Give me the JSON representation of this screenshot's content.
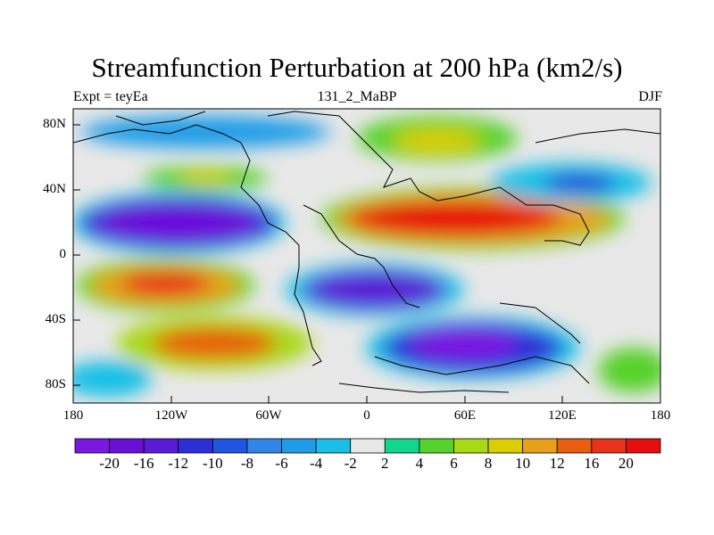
{
  "title": "Streamfunction Perturbation at 200 hPa (km2/s)",
  "subtitle_left": "Expt = teyEa",
  "subtitle_center": "131_2_MaBP",
  "subtitle_right": "DJF",
  "lat_ticks": [
    "80N",
    "40N",
    "0",
    "40S",
    "80S"
  ],
  "lon_ticks": [
    "180",
    "120W",
    "60W",
    "0",
    "60E",
    "120E",
    "180"
  ],
  "colorbar": {
    "colors": [
      "#7a17e0",
      "#6a0fd8",
      "#5a1ad6",
      "#2e2ed8",
      "#1f55e0",
      "#2f86e6",
      "#1f9be8",
      "#19bfe6",
      "#e8e8e8",
      "#10d68e",
      "#56d22b",
      "#a8d915",
      "#dccd00",
      "#e8a01a",
      "#e85d10",
      "#e8331a",
      "#e60f0f"
    ],
    "labels": [
      "-20",
      "-16",
      "-12",
      "-10",
      "-8",
      "-6",
      "-4",
      "-2",
      "2",
      "4",
      "6",
      "8",
      "10",
      "12",
      "16",
      "20"
    ]
  },
  "fields": [
    {
      "name": "west-pacific-low",
      "lon": -115,
      "lat": 17,
      "value": -22
    },
    {
      "name": "south-pacific-high",
      "lon": -105,
      "lat": -17,
      "value": 18
    },
    {
      "name": "south-pacific-high-2",
      "lon": -80,
      "lat": -52,
      "value": 13
    },
    {
      "name": "eurasia-high",
      "lon": 50,
      "lat": 22,
      "value": 19
    },
    {
      "name": "indian-ocean-low",
      "lon": 60,
      "lat": -55,
      "value": -14
    },
    {
      "name": "atlantic-low",
      "lon": -20,
      "lat": -22,
      "value": -13
    },
    {
      "name": "arctic-high",
      "lon": 40,
      "lat": 70,
      "value": 8
    },
    {
      "name": "north-pacific-low",
      "lon": 130,
      "lat": 45,
      "value": -11
    },
    {
      "name": "north-atlantic-high",
      "lon": -90,
      "lat": 48,
      "value": 6
    }
  ]
}
